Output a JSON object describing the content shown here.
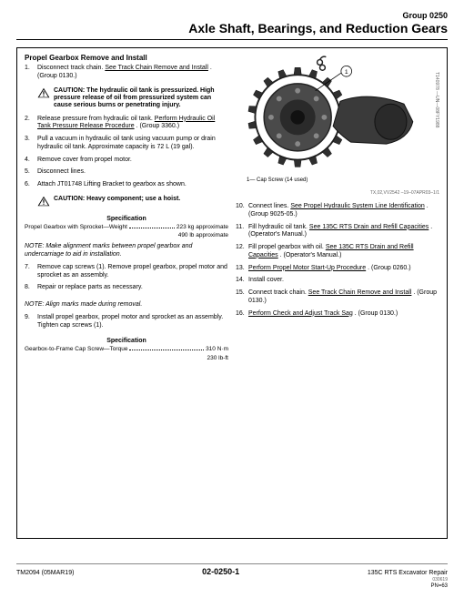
{
  "header": {
    "group": "Group 0250",
    "title": "Axle Shaft, Bearings, and Reduction Gears"
  },
  "section_title": "Propel Gearbox Remove and Install",
  "left_steps": [
    {
      "n": "1.",
      "pre": "Disconnect track chain. ",
      "link": "See Track Chain Remove and Install",
      "post": " . (Group 0130.)"
    }
  ],
  "caution1": {
    "label": "CAUTION:",
    "text": " The hydraulic oil tank is pressurized. High pressure release of oil from pressurized system can cause serious burns or penetrating injury."
  },
  "left_steps_b": [
    {
      "n": "2.",
      "pre": "Release pressure from hydraulic oil tank. ",
      "link": "Perform Hydraulic Oil Tank Pressure Release Procedure",
      "post": " . (Group 3360.)"
    },
    {
      "n": "3.",
      "pre": "Pull a vacuum in hydraulic oil tank using vacuum pump or drain hydraulic oil tank. Approximate capacity is 72 L (19 gal).",
      "link": "",
      "post": ""
    },
    {
      "n": "4.",
      "pre": "Remove cover from propel motor.",
      "link": "",
      "post": ""
    },
    {
      "n": "5.",
      "pre": "Disconnect lines.",
      "link": "",
      "post": ""
    },
    {
      "n": "6.",
      "pre": "Attach JT01748 Lifting Bracket to gearbox as shown.",
      "link": "",
      "post": ""
    }
  ],
  "caution2": {
    "label": "CAUTION:",
    "text": " Heavy component; use a hoist."
  },
  "spec1": {
    "title": "Specification",
    "label": "Propel Gearbox with Sprocket—Weight",
    "val1": "223 kg approximate",
    "val2": "490 lb approximate"
  },
  "note1": "NOTE: Make alignment marks between propel gearbox and undercarriage to aid in installation.",
  "left_steps_c": [
    {
      "n": "7.",
      "pre": "Remove cap screws (1). Remove propel gearbox, propel motor and sprocket as an assembly.",
      "link": "",
      "post": ""
    },
    {
      "n": "8.",
      "pre": "Repair or replace parts as necessary.",
      "link": "",
      "post": ""
    }
  ],
  "note2": "NOTE: Align marks made during removal.",
  "left_steps_d": [
    {
      "n": "9.",
      "pre": "Install propel gearbox, propel motor and sprocket as an assembly. Tighten cap screws (1).",
      "link": "",
      "post": ""
    }
  ],
  "spec2": {
    "title": "Specification",
    "label": "Gearbox-to-Frame Cap Screw—Torque",
    "val1": "310 N·m",
    "val2": "230 lb-ft"
  },
  "figure": {
    "ref": "T140978 —UN—08FY1988",
    "caption": "1— Cap Screw (14 used)",
    "code": "TX,02,VV2542 –19–07APR03–1/1"
  },
  "right_steps": [
    {
      "n": "10.",
      "pre": "Connect lines. ",
      "link": "See Propel Hydraulic System Line Identification",
      "post": " . (Group 9025-05.)"
    },
    {
      "n": "11.",
      "pre": "Fill hydraulic oil tank. ",
      "link": "See 135C RTS Drain and Refill Capacities",
      "post": " . (Operator's Manual.)"
    },
    {
      "n": "12.",
      "pre": "Fill propel gearbox with oil. ",
      "link": "See 135C RTS Drain and Refill Capacities",
      "post": " . (Operator's Manual.)"
    },
    {
      "n": "13.",
      "pre": "",
      "link": "Perform Propel Motor Start-Up Procedure",
      "post": " . (Group 0260.)"
    },
    {
      "n": "14.",
      "pre": "Install cover.",
      "link": "",
      "post": ""
    },
    {
      "n": "15.",
      "pre": "Connect track chain. ",
      "link": "See Track Chain Remove and Install",
      "post": " . (Group 0130.)"
    },
    {
      "n": "16.",
      "pre": "",
      "link": "Perform Check and Adjust Track Sag",
      "post": " . (Group 0130.)"
    }
  ],
  "footer": {
    "left": "TM2094 (05MAR19)",
    "center": "02-0250-1",
    "right_title": "135C RTS Excavator Repair",
    "right_sub": "030619",
    "pn": "PN=63"
  }
}
